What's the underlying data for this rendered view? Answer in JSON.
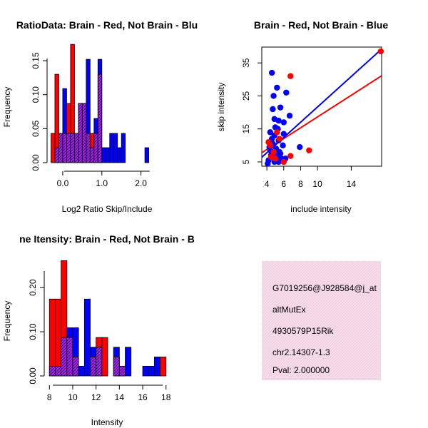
{
  "colors": {
    "red": "#ff0000",
    "blue": "#0000ff",
    "purple": "#a020f0",
    "info_bg": "#f5dcea",
    "pval": "#8b0000"
  },
  "chart_data": [
    {
      "type": "bar",
      "title": "RatioData: Brain - Red, Not Brain - Blu",
      "xlabel": "Log2 Ratio Skip/Include",
      "ylabel": "Frequency",
      "xlim": [
        -0.4,
        2.7
      ],
      "ylim": [
        0,
        0.17
      ],
      "xticks": [
        {
          "v": 0,
          "label": "0.0"
        },
        {
          "v": 1,
          "label": "1.0"
        },
        {
          "v": 2,
          "label": "2.0"
        }
      ],
      "yticks": [
        {
          "v": 0,
          "label": "0.00"
        },
        {
          "v": 0.05,
          "label": "0.05"
        },
        {
          "v": 0.1,
          "label": "0.10"
        },
        {
          "v": 0.15,
          "label": "0.15"
        }
      ],
      "bin_start": -0.3,
      "bin_width": 0.1,
      "series": [
        {
          "name": "Brain",
          "color": "red",
          "values": [
            0.043,
            0.13,
            0.043,
            0.043,
            0.087,
            0.174,
            0.043,
            0.087,
            0.087,
            0.043,
            0.043,
            0.043,
            0.13,
            0,
            0,
            0,
            0,
            0,
            0,
            0,
            0,
            0,
            0,
            0,
            0
          ]
        },
        {
          "name": "Not Brain",
          "color": "blue",
          "values": [
            0,
            0.022,
            0.043,
            0.109,
            0.043,
            0.043,
            0.043,
            0.087,
            0.087,
            0.152,
            0.022,
            0.065,
            0.152,
            0.022,
            0.022,
            0.043,
            0.043,
            0.022,
            0.043,
            0,
            0,
            0,
            0,
            0,
            0.022
          ]
        }
      ]
    },
    {
      "type": "scatter",
      "title": "Brain - Red, Not Brain - Blue",
      "xlabel": "include intensity",
      "ylabel": "skip intensity",
      "xlim": [
        3.4,
        17.6
      ],
      "ylim": [
        3.7,
        39.8
      ],
      "xticks": [
        {
          "v": 4,
          "label": "4"
        },
        {
          "v": 6,
          "label": "6"
        },
        {
          "v": 8,
          "label": "8"
        },
        {
          "v": 10,
          "label": "10"
        },
        {
          "v": 14,
          "label": "14"
        }
      ],
      "yticks": [
        {
          "v": 5,
          "label": "5"
        },
        {
          "v": 15,
          "label": "15"
        },
        {
          "v": 25,
          "label": "25"
        },
        {
          "v": 35,
          "label": "35"
        }
      ],
      "series": [
        {
          "name": "Brain",
          "color": "red",
          "points": [
            [
              17.5,
              38.5
            ],
            [
              6.8,
              31.0
            ],
            [
              9.0,
              8.5
            ],
            [
              6.8,
              6.8
            ],
            [
              6.0,
              5.0
            ],
            [
              4.4,
              10.0
            ],
            [
              4.8,
              8.0
            ],
            [
              5.0,
              6.0
            ],
            [
              5.2,
              14.0
            ],
            [
              5.5,
              12.0
            ],
            [
              4.2,
              11.0
            ],
            [
              4.5,
              6.5
            ]
          ],
          "fit": [
            [
              3.4,
              7.8
            ],
            [
              17.6,
              31.1
            ]
          ]
        },
        {
          "name": "Not Brain",
          "color": "blue",
          "points": [
            [
              4.6,
              32.0
            ],
            [
              5.2,
              27.5
            ],
            [
              6.3,
              26.0
            ],
            [
              4.8,
              25.0
            ],
            [
              5.6,
              21.5
            ],
            [
              4.7,
              21.0
            ],
            [
              6.7,
              19.0
            ],
            [
              4.9,
              18.0
            ],
            [
              5.4,
              17.5
            ],
            [
              6.0,
              17.0
            ],
            [
              5.0,
              15.5
            ],
            [
              5.3,
              15.0
            ],
            [
              4.4,
              14.0
            ],
            [
              6.0,
              13.5
            ],
            [
              4.9,
              13.0
            ],
            [
              4.6,
              12.0
            ],
            [
              5.4,
              11.5
            ],
            [
              4.7,
              10.5
            ],
            [
              5.9,
              10.0
            ],
            [
              4.3,
              9.5
            ],
            [
              5.1,
              9.0
            ],
            [
              7.9,
              9.5
            ],
            [
              4.8,
              8.0
            ],
            [
              5.6,
              7.5
            ],
            [
              4.5,
              7.0
            ],
            [
              5.2,
              6.5
            ],
            [
              6.2,
              6.0
            ],
            [
              4.2,
              5.5
            ],
            [
              5.4,
              5.0
            ],
            [
              4.9,
              5.0
            ],
            [
              5.7,
              6.0
            ],
            [
              4.1,
              4.5
            ],
            [
              5.0,
              7.0
            ],
            [
              5.5,
              8.0
            ],
            [
              4.4,
              8.5
            ]
          ],
          "fit": [
            [
              3.4,
              6.4
            ],
            [
              17.6,
              39.2
            ]
          ]
        }
      ]
    },
    {
      "type": "bar",
      "title": "ne Itensity: Brain - Red, Not Brain - B",
      "xlabel": "Intensity",
      "ylabel": "Frequency",
      "xlim": [
        7.8,
        18.2
      ],
      "ylim": [
        0,
        0.26
      ],
      "xticks": [
        {
          "v": 8,
          "label": "8"
        },
        {
          "v": 10,
          "label": "10"
        },
        {
          "v": 12,
          "label": "12"
        },
        {
          "v": 14,
          "label": "14"
        },
        {
          "v": 16,
          "label": "16"
        },
        {
          "v": 18,
          "label": "18"
        }
      ],
      "yticks": [
        {
          "v": 0,
          "label": "0.00"
        },
        {
          "v": 0.1,
          "label": "0.10"
        },
        {
          "v": 0.2,
          "label": "0.20"
        }
      ],
      "bin_start": 8.0,
      "bin_width": 0.5,
      "series": [
        {
          "name": "Brain",
          "color": "red",
          "values": [
            0.174,
            0.174,
            0.261,
            0.087,
            0.043,
            0,
            0,
            0.043,
            0.087,
            0.087,
            0,
            0.043,
            0.022,
            0,
            0,
            0,
            0,
            0,
            0,
            0.043
          ]
        },
        {
          "name": "Not Brain",
          "color": "blue",
          "values": [
            0.022,
            0.022,
            0.087,
            0.109,
            0.109,
            0.022,
            0.174,
            0.065,
            0.065,
            0,
            0,
            0.065,
            0.022,
            0.065,
            0,
            0,
            0.022,
            0.022,
            0.043,
            0
          ]
        }
      ]
    }
  ],
  "info_panel": {
    "lines": [
      "G7019256@J928584@j_at",
      "altMutEx",
      "4930579P15Rik",
      "chr2.14307-1.3"
    ],
    "pval": "Pval: 2.000000"
  }
}
